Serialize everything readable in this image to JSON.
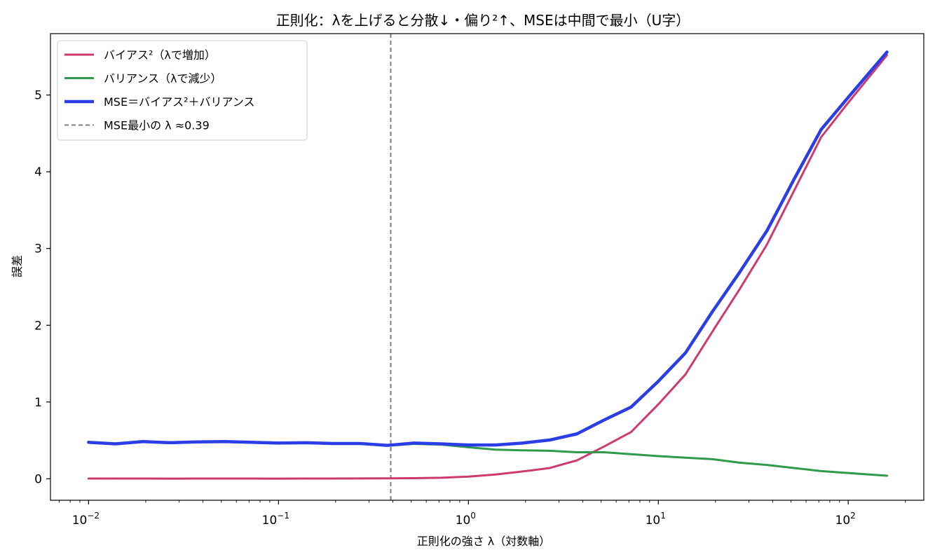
{
  "chart_data": {
    "type": "line",
    "title": "正則化：λを上げると分散↓・偏り²↑、MSEは中間で最小（U字）",
    "xlabel": "正則化の強さ λ（対数軸）",
    "ylabel": "誤差",
    "x_scale": "log",
    "xlim": [
      0.0063,
      250
    ],
    "ylim": [
      -0.28,
      5.8
    ],
    "x_ticks": [
      {
        "value": 0.01,
        "base": "10",
        "exp": "−2"
      },
      {
        "value": 0.1,
        "base": "10",
        "exp": "−1"
      },
      {
        "value": 1,
        "base": "10",
        "exp": "0"
      },
      {
        "value": 10,
        "base": "10",
        "exp": "1"
      },
      {
        "value": 100,
        "base": "10",
        "exp": "2"
      }
    ],
    "y_ticks": [
      0,
      1,
      2,
      3,
      4,
      5
    ],
    "grid": false,
    "legend_position": "top-left",
    "x": [
      0.01,
      0.0139,
      0.0193,
      0.0268,
      0.0373,
      0.0518,
      0.072,
      0.1,
      0.139,
      0.193,
      0.268,
      0.373,
      0.518,
      0.72,
      1.0,
      1.39,
      1.93,
      2.68,
      3.73,
      5.18,
      7.2,
      10.0,
      13.9,
      19.3,
      26.8,
      37.3,
      51.8,
      72.0,
      100,
      160
    ],
    "series": [
      {
        "name": "バイアス²（λで増加）",
        "color": "#cc3a6e",
        "linewidth": 3,
        "values": [
          0.003,
          0.003,
          0.003,
          0.002,
          0.003,
          0.003,
          0.003,
          0.002,
          0.003,
          0.003,
          0.004,
          0.005,
          0.008,
          0.013,
          0.028,
          0.055,
          0.095,
          0.14,
          0.24,
          0.42,
          0.61,
          0.97,
          1.36,
          1.92,
          2.47,
          3.05,
          3.75,
          4.45,
          4.9,
          5.52
        ]
      },
      {
        "name": "バリアンス（λで減少）",
        "color": "#2e9a4a",
        "linewidth": 3,
        "values": [
          0.47,
          0.45,
          0.48,
          0.465,
          0.475,
          0.48,
          0.47,
          0.46,
          0.465,
          0.455,
          0.455,
          0.43,
          0.455,
          0.445,
          0.41,
          0.38,
          0.37,
          0.365,
          0.345,
          0.345,
          0.32,
          0.295,
          0.275,
          0.255,
          0.21,
          0.18,
          0.14,
          0.1,
          0.075,
          0.04
        ]
      },
      {
        "name": "MSE＝バイアス²＋バリアンス",
        "color": "#2b3ee6",
        "linewidth": 4.5,
        "values": [
          0.475,
          0.455,
          0.485,
          0.47,
          0.48,
          0.485,
          0.475,
          0.465,
          0.47,
          0.46,
          0.46,
          0.435,
          0.465,
          0.455,
          0.44,
          0.44,
          0.465,
          0.505,
          0.585,
          0.765,
          0.935,
          1.27,
          1.64,
          2.18,
          2.69,
          3.23,
          3.9,
          4.55,
          4.97,
          5.56
        ]
      }
    ],
    "vline": {
      "x": 0.39,
      "label": "MSE最小の λ ≈0.39",
      "color": "#808080",
      "style": "dashed"
    }
  }
}
